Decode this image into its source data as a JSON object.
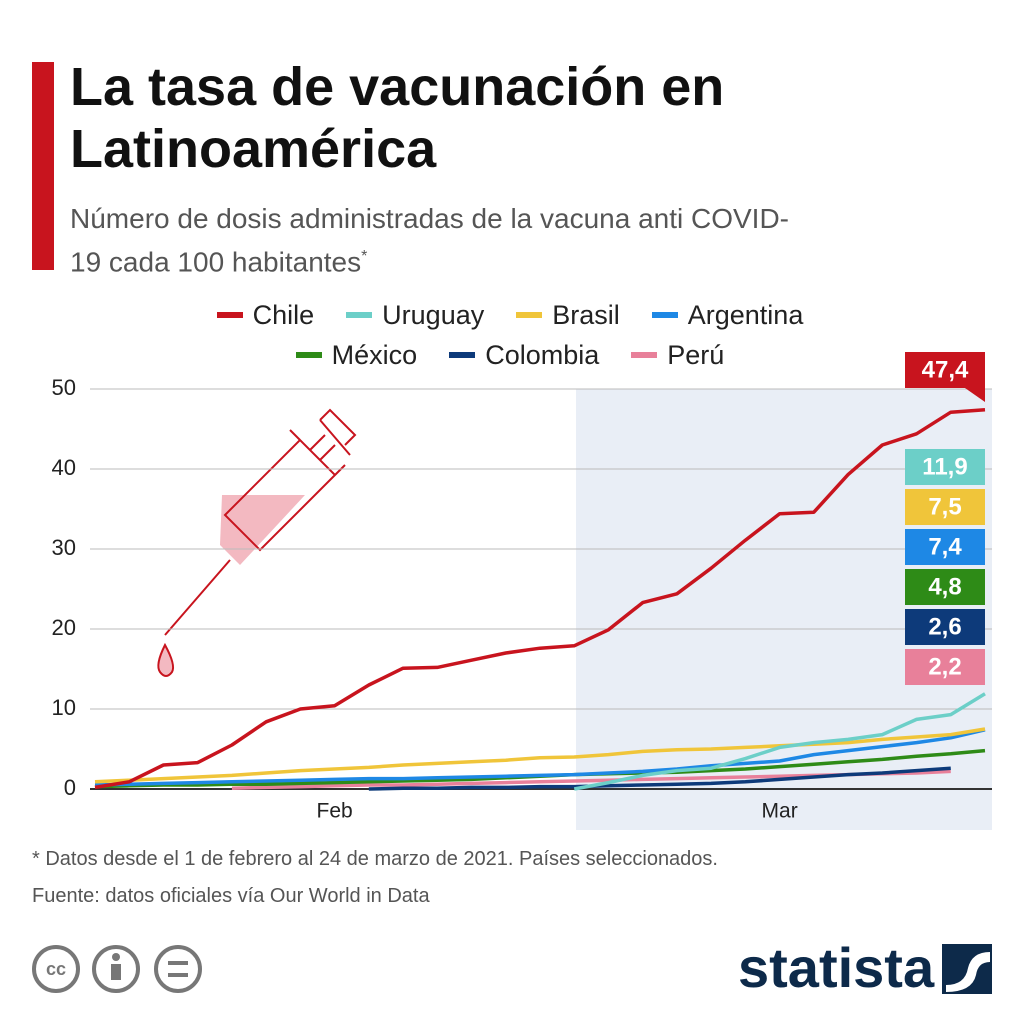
{
  "header": {
    "title": "La tasa de vacunación en Latinoamérica",
    "subtitle": "Número de dosis administradas de la vacuna anti COVID-19 cada 100 habitantes",
    "subtitle_marker": "*"
  },
  "chart_data": {
    "type": "line",
    "categories": [
      null,
      null,
      null,
      null,
      null,
      null,
      null,
      "Feb",
      null,
      null,
      null,
      null,
      null,
      null,
      null,
      null,
      null,
      null,
      null,
      null,
      "Mar",
      null,
      null,
      null,
      null,
      null,
      null
    ],
    "ylim": [
      0,
      50
    ],
    "yticks": [
      0,
      10,
      20,
      30,
      40,
      50
    ],
    "grid": true,
    "series": [
      {
        "name": "Chile",
        "color": "#c8141e",
        "values": [
          0.2,
          0.9,
          3.0,
          3.3,
          5.5,
          8.4,
          10,
          10.4,
          13,
          15.1,
          15.2,
          16.1,
          17,
          17.6,
          17.9,
          19.9,
          23.3,
          24.4,
          27.6,
          31.1,
          34.4,
          34.6,
          39.3,
          43,
          44.4,
          47.1,
          47.4
        ],
        "value_labels": [
          null,
          null,
          null,
          null,
          null,
          null,
          null,
          null,
          null,
          null,
          null,
          null,
          null,
          null,
          null,
          null,
          null,
          null,
          null,
          null,
          null,
          null,
          null,
          null,
          null,
          null,
          "47,4"
        ]
      },
      {
        "name": "Uruguay",
        "color": "#6ccfc8",
        "values": [
          null,
          null,
          null,
          null,
          null,
          null,
          null,
          null,
          null,
          null,
          null,
          null,
          null,
          null,
          0,
          0.8,
          1.7,
          2.3,
          2.6,
          3.8,
          5.2,
          5.8,
          6.2,
          6.8,
          8.7,
          9.3,
          11.9
        ],
        "value_labels": [
          null,
          null,
          null,
          null,
          null,
          null,
          null,
          null,
          null,
          null,
          null,
          null,
          null,
          null,
          null,
          null,
          null,
          null,
          null,
          null,
          null,
          null,
          null,
          null,
          null,
          null,
          "11,9"
        ]
      },
      {
        "name": "Brasil",
        "color": "#f0c53a",
        "values": [
          0.9,
          1.1,
          1.3,
          1.5,
          1.7,
          2.0,
          2.3,
          2.5,
          2.7,
          3.0,
          3.2,
          3.4,
          3.6,
          3.9,
          4.0,
          4.3,
          4.7,
          4.9,
          5.0,
          5.2,
          5.4,
          5.6,
          5.8,
          6.2,
          6.5,
          6.8,
          7.5
        ],
        "value_labels": [
          null,
          null,
          null,
          null,
          null,
          null,
          null,
          null,
          null,
          null,
          null,
          null,
          null,
          null,
          null,
          null,
          null,
          null,
          null,
          null,
          null,
          null,
          null,
          null,
          null,
          null,
          "7,5"
        ]
      },
      {
        "name": "Argentina",
        "color": "#1e88e5",
        "values": [
          0.5,
          0.6,
          0.7,
          0.8,
          0.9,
          1.0,
          1.1,
          1.2,
          1.3,
          1.3,
          1.4,
          1.5,
          1.6,
          1.7,
          1.8,
          2.0,
          2.2,
          2.5,
          2.9,
          3.2,
          3.5,
          4.3,
          4.8,
          5.3,
          5.8,
          6.4,
          7.4
        ],
        "value_labels": [
          null,
          null,
          null,
          null,
          null,
          null,
          null,
          null,
          null,
          null,
          null,
          null,
          null,
          null,
          null,
          null,
          null,
          null,
          null,
          null,
          null,
          null,
          null,
          null,
          null,
          null,
          "7,4"
        ]
      },
      {
        "name": "México",
        "color": "#2e8b17",
        "values": [
          0.3,
          0.4,
          0.5,
          0.5,
          0.6,
          0.6,
          0.7,
          0.8,
          0.9,
          1.0,
          1.1,
          1.2,
          1.4,
          1.6,
          1.8,
          1.9,
          2.0,
          2.1,
          2.3,
          2.5,
          2.8,
          3.1,
          3.4,
          3.7,
          4.1,
          4.4,
          4.8
        ],
        "value_labels": [
          null,
          null,
          null,
          null,
          null,
          null,
          null,
          null,
          null,
          null,
          null,
          null,
          null,
          null,
          null,
          null,
          null,
          null,
          null,
          null,
          null,
          null,
          null,
          null,
          null,
          null,
          "4,8"
        ]
      },
      {
        "name": "Colombia",
        "color": "#0d3a7a",
        "values": [
          null,
          null,
          null,
          null,
          null,
          null,
          null,
          null,
          0.0,
          0.1,
          0.1,
          0.2,
          0.2,
          0.3,
          0.3,
          0.4,
          0.5,
          0.6,
          0.7,
          0.9,
          1.2,
          1.5,
          1.8,
          2.0,
          2.3,
          2.6,
          null
        ],
        "value_labels": [
          null,
          null,
          null,
          null,
          null,
          null,
          null,
          null,
          null,
          null,
          null,
          null,
          null,
          null,
          null,
          null,
          null,
          null,
          null,
          null,
          null,
          null,
          null,
          null,
          null,
          "2,6",
          null
        ]
      },
      {
        "name": "Perú",
        "color": "#e8809a",
        "values": [
          null,
          null,
          null,
          null,
          0.1,
          0.2,
          0.3,
          0.4,
          0.5,
          0.5,
          0.6,
          0.7,
          0.8,
          0.9,
          1.0,
          1.1,
          1.2,
          1.3,
          1.4,
          1.5,
          1.6,
          1.7,
          1.8,
          1.9,
          2.0,
          2.2,
          null
        ],
        "value_labels": [
          null,
          null,
          null,
          null,
          null,
          null,
          null,
          null,
          null,
          null,
          null,
          null,
          null,
          null,
          null,
          null,
          null,
          null,
          null,
          null,
          null,
          null,
          null,
          null,
          null,
          "2,2",
          null
        ]
      }
    ]
  },
  "footer": {
    "note": "* Datos desde el 1 de febrero al 24 de marzo de 2021. Países seleccionados.",
    "source": "Fuente: datos oficiales vía Our World in Data",
    "brand": "statista"
  }
}
